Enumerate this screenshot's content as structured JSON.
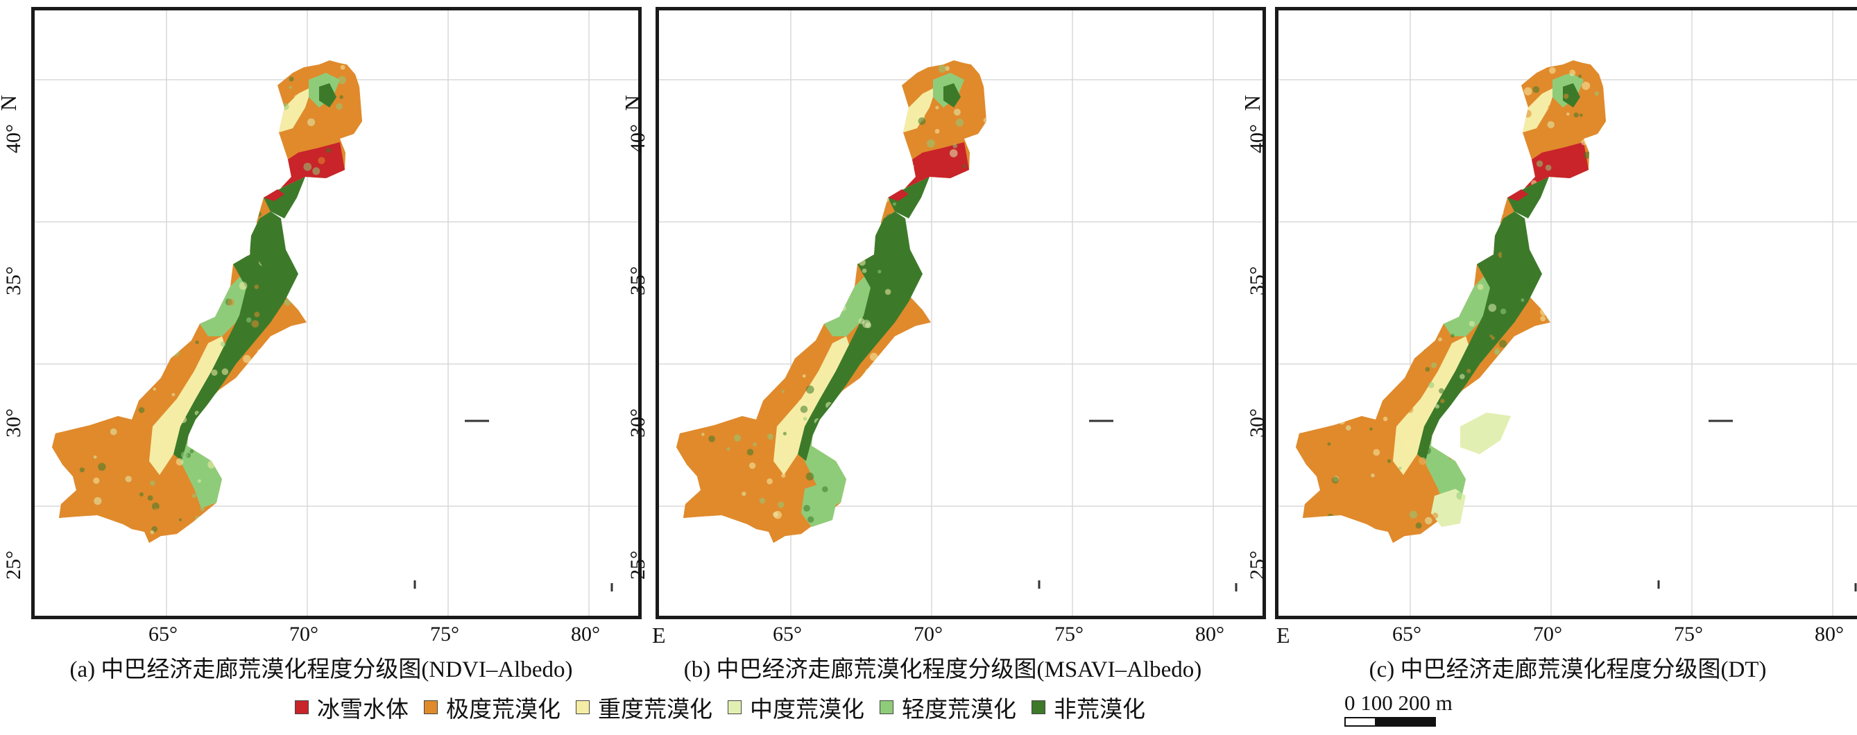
{
  "panels": [
    {
      "caption": "(a) 中巴经济走廊荒漠化程度分级图(NDVI–Albedo)",
      "x_ticks": [
        "65°",
        "70°",
        "75°",
        "80°"
      ],
      "y_ticks": [
        "40°",
        "35°",
        "30°",
        "25°"
      ],
      "x_axis_letter": "E",
      "y_axis_letter": "N",
      "variant": "a"
    },
    {
      "caption": "(b) 中巴经济走廊荒漠化程度分级图(MSAVI–Albedo)",
      "x_ticks": [
        "65°",
        "70°",
        "75°",
        "80°"
      ],
      "y_ticks": [
        "40°",
        "35°",
        "30°",
        "25°"
      ],
      "x_axis_letter": "E",
      "y_axis_letter": "N",
      "variant": "b"
    },
    {
      "caption": "(c) 中巴经济走廊荒漠化程度分级图(DT)",
      "x_ticks": [
        "65°",
        "70°",
        "75°",
        "80°"
      ],
      "y_ticks": [
        "40°",
        "35°",
        "30°",
        "25°"
      ],
      "x_axis_letter": "E",
      "y_axis_letter": "N",
      "variant": "c"
    }
  ],
  "legend": {
    "items": [
      {
        "label": "冰雪水体",
        "color": "#c8242a"
      },
      {
        "label": "极度荒漠化",
        "color": "#e08a2c"
      },
      {
        "label": "重度荒漠化",
        "color": "#f5eda6"
      },
      {
        "label": "中度荒漠化",
        "color": "#e2efb2"
      },
      {
        "label": "轻度荒漠化",
        "color": "#8fcc7a"
      },
      {
        "label": "非荒漠化",
        "color": "#3c7a2a"
      }
    ]
  },
  "scale_bar": {
    "label": "0   100 200 m"
  },
  "colors": {
    "ice_water": "#c8242a",
    "extreme": "#e08a2c",
    "severe": "#f5eda6",
    "moderate": "#e2efb2",
    "light": "#8fcc7a",
    "non": "#3c7a2a",
    "grid": "#d8d8d8"
  }
}
